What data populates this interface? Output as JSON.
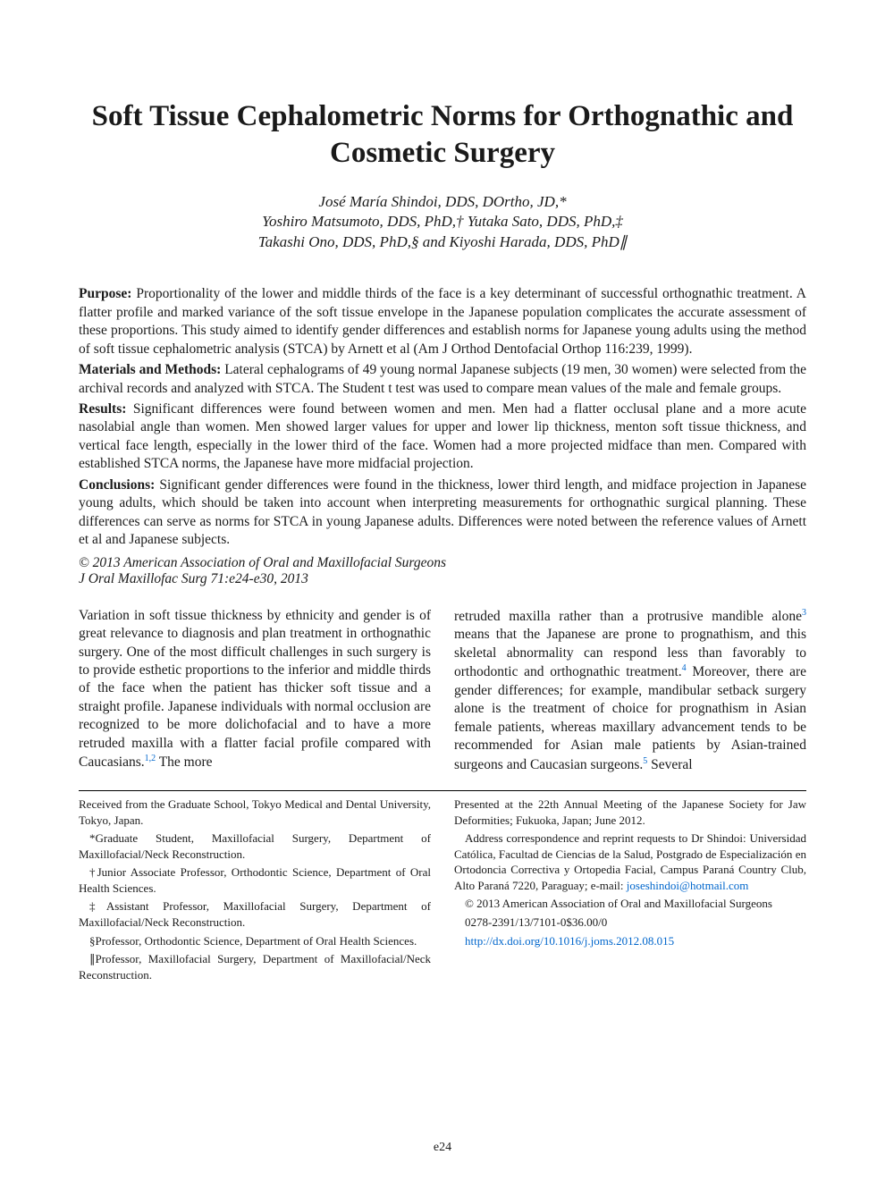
{
  "title": "Soft Tissue Cephalometric Norms for Orthognathic and Cosmetic Surgery",
  "authors_line1": "José María Shindoi, DDS, DOrtho, JD,*",
  "authors_line2": "Yoshiro Matsumoto, DDS, PhD,† Yutaka Sato, DDS, PhD,‡",
  "authors_line3": "Takashi Ono, DDS, PhD,§ and Kiyoshi Harada, DDS, PhD∥",
  "abstract": {
    "purpose_label": "Purpose:",
    "purpose": "Proportionality of the lower and middle thirds of the face is a key determinant of successful orthognathic treatment. A flatter profile and marked variance of the soft tissue envelope in the Japanese population complicates the accurate assessment of these proportions. This study aimed to identify gender differences and establish norms for Japanese young adults using the method of soft tissue cephalometric analysis (STCA) by Arnett et al (Am J Orthod Dentofacial Orthop 116:239, 1999).",
    "methods_label": "Materials and Methods:",
    "methods": "Lateral cephalograms of 49 young normal Japanese subjects (19 men, 30 women) were selected from the archival records and analyzed with STCA. The Student t test was used to compare mean values of the male and female groups.",
    "results_label": "Results:",
    "results": "Significant differences were found between women and men. Men had a flatter occlusal plane and a more acute nasolabial angle than women. Men showed larger values for upper and lower lip thickness, menton soft tissue thickness, and vertical face length, especially in the lower third of the face. Women had a more projected midface than men. Compared with established STCA norms, the Japanese have more midfacial projection.",
    "conclusions_label": "Conclusions:",
    "conclusions": "Significant gender differences were found in the thickness, lower third length, and midface projection in Japanese young adults, which should be taken into account when interpreting measurements for orthognathic surgical planning. These differences can serve as norms for STCA in young Japanese adults. Differences were noted between the reference values of Arnett et al and Japanese subjects."
  },
  "copyright": "© 2013 American Association of Oral and Maxillofacial Surgeons",
  "journal_cite": "J Oral Maxillofac Surg 71:e24-e30, 2013",
  "body": {
    "col1_pre": "Variation in soft tissue thickness by ethnicity and gender is of great relevance to diagnosis and plan treatment in orthognathic surgery. One of the most difficult challenges in such surgery is to provide esthetic proportions to the inferior and middle thirds of the face when the patient has thicker soft tissue and a straight profile. Japanese individuals with normal occlusion are recognized to be more dolichofacial and to have a more retruded maxilla with a flatter facial profile compared with Caucasians.",
    "ref12": "1,2",
    "col1_post": " The more",
    "col2_pre": "retruded maxilla rather than a protrusive mandible alone",
    "ref3": "3",
    "col2_mid1": " means that the Japanese are prone to prognathism, and this skeletal abnormality can respond less than favorably to orthodontic and orthognathic treatment.",
    "ref4": "4",
    "col2_mid2": " Moreover, there are gender differences; for example, mandibular setback surgery alone is the treatment of choice for prognathism in Asian female patients, whereas maxillary advancement tends to be recommended for Asian male patients by Asian-trained surgeons and Caucasian surgeons.",
    "ref5": "5",
    "col2_post": " Several"
  },
  "footnotes": {
    "left": [
      "Received from the Graduate School, Tokyo Medical and Dental University, Tokyo, Japan.",
      "*Graduate Student, Maxillofacial Surgery, Department of Maxillofacial/Neck Reconstruction.",
      "†Junior Associate Professor, Orthodontic Science, Department of Oral Health Sciences.",
      "‡Assistant Professor, Maxillofacial Surgery, Department of Maxillofacial/Neck Reconstruction.",
      "§Professor, Orthodontic Science, Department of Oral Health Sciences.",
      "∥Professor, Maxillofacial Surgery, Department of Maxillofacial/Neck Reconstruction."
    ],
    "right_p1": "Presented at the 22th Annual Meeting of the Japanese Society for Jaw Deformities; Fukuoka, Japan; June 2012.",
    "right_p2_pre": "Address correspondence and reprint requests to Dr Shindoi: Universidad Católica, Facultad de Ciencias de la Salud, Postgrado de Especialización en Ortodoncia Correctiva y Ortopedia Facial, Campus Paraná Country Club, Alto Paraná 7220, Paraguay; e-mail: ",
    "email": "joseshindoi@hotmail.com",
    "right_p3": "© 2013 American Association of Oral and Maxillofacial Surgeons",
    "right_p4": "0278-2391/13/7101-0$36.00/0",
    "doi": "http://dx.doi.org/10.1016/j.joms.2012.08.015"
  },
  "page_number": "e24",
  "colors": {
    "text": "#1a1a1a",
    "link": "#0066cc",
    "background": "#ffffff"
  },
  "typography": {
    "title_fontsize": 33,
    "authors_fontsize": 17,
    "abstract_fontsize": 15.5,
    "body_fontsize": 15.5,
    "footnote_fontsize": 13,
    "font_family": "Garamond, Georgia, serif"
  }
}
